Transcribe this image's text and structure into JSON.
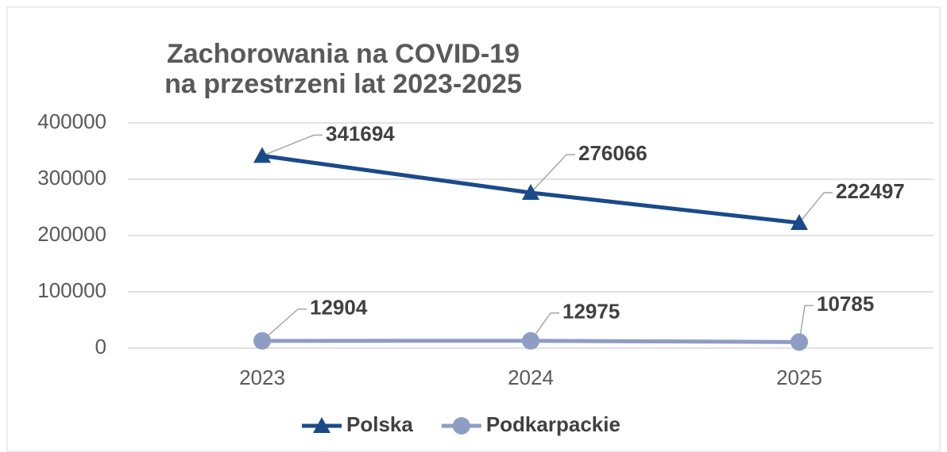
{
  "chart_data": {
    "type": "line",
    "title": [
      "Zachorowania na COVID-19",
      "na przestrzeni lat 2023-2025"
    ],
    "categories": [
      "2023",
      "2024",
      "2025"
    ],
    "series": [
      {
        "name": "Polska",
        "color": "#1a4a8a",
        "marker": "triangle",
        "values": [
          341694,
          276066,
          222497
        ]
      },
      {
        "name": "Podkarpackie",
        "color": "#8e9dc4",
        "marker": "circle",
        "values": [
          12904,
          12975,
          10785
        ]
      }
    ],
    "ylim": [
      0,
      400000
    ],
    "yticks": [
      0,
      100000,
      200000,
      300000,
      400000
    ],
    "grid": true,
    "legend": "bottom"
  }
}
